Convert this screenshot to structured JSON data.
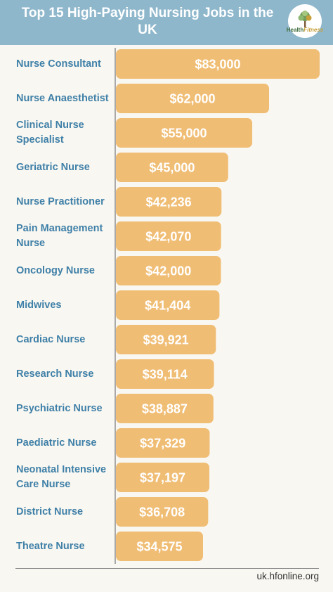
{
  "header": {
    "title": "Top 15 High-Paying Nursing Jobs in the UK",
    "logo_text_a": "Health",
    "logo_text_b": "Fitness"
  },
  "footer": {
    "source": "uk.hfonline.org"
  },
  "colors": {
    "header_bg": "#8fb7cc",
    "bar": "#f0bd74",
    "label": "#3f80a8",
    "bar_text": "#ffffff",
    "background": "#f9f7f1"
  },
  "chart_data": {
    "type": "bar",
    "orientation": "horizontal",
    "title": "Top 15 High-Paying Nursing Jobs in the UK",
    "xlabel": "",
    "ylabel": "",
    "categories": [
      "Nurse Consultant",
      "Nurse Anaesthetist",
      "Clinical Nurse Specialist",
      "Geriatric Nurse",
      "Nurse Practitioner",
      "Pain Management Nurse",
      "Oncology Nurse",
      "Midwives",
      "Cardiac Nurse",
      "Research Nurse",
      "Psychiatric Nurse",
      "Paediatric Nurse",
      "Neonatal Intensive Care Nurse",
      "District Nurse",
      "Theatre Nurse"
    ],
    "values": [
      83000,
      62000,
      55000,
      45000,
      42236,
      42070,
      42000,
      41404,
      39921,
      39114,
      38887,
      37329,
      37197,
      36708,
      34575
    ],
    "value_labels": [
      "$83,000",
      "$62,000",
      "$55,000",
      "$45,000",
      "$42,236",
      "$42,070",
      "$42,000",
      "$41,404",
      "$39,921",
      "$39,114",
      "$38,887",
      "$37,329",
      "$37,197",
      "$36,708",
      "$34,575"
    ],
    "grid": false,
    "legend": "none"
  }
}
